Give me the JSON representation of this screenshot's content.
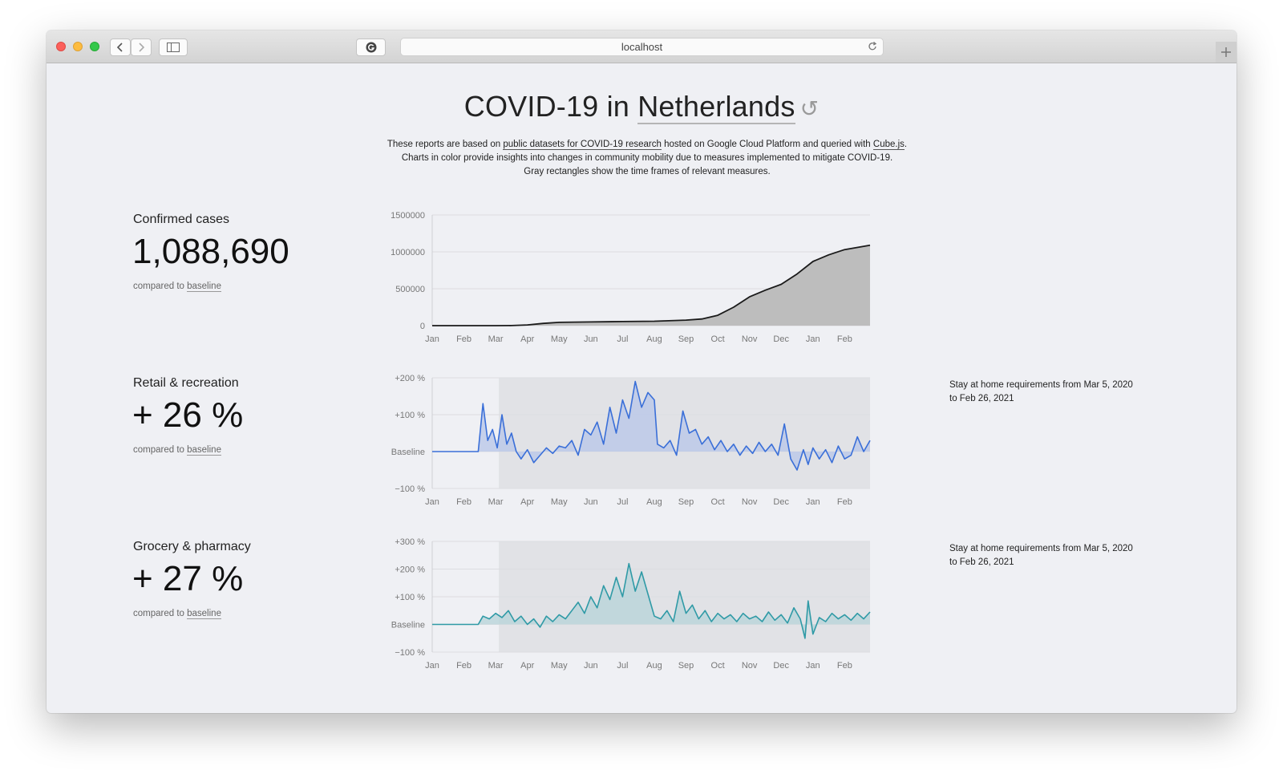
{
  "browser": {
    "url": "localhost"
  },
  "page": {
    "heading_prefix": "COVID-19 in",
    "country": "Netherlands",
    "reset_icon": "↺",
    "intro": {
      "t1": "These reports are based on ",
      "link1": "public datasets for COVID-19 research",
      "t2": " hosted on Google Cloud Platform and queried with ",
      "link2": "Cube.js",
      "t3": ".",
      "line2": "Charts in color provide insights into changes in community mobility due to measures implemented to mitigate COVID-19.",
      "line3": "Gray rectangles show the time frames of relevant measures."
    }
  },
  "stats": [
    {
      "title": "Confirmed cases",
      "value": "1,088,690",
      "note_prefix": "compared to ",
      "note_link": "baseline"
    },
    {
      "title": "Retail & recreation",
      "value": "+ 26 %",
      "note_prefix": "compared to ",
      "note_link": "baseline",
      "measure_note": "Stay at home requirements from Mar 5, 2020 to Feb 26, 2021"
    },
    {
      "title": "Grocery & pharmacy",
      "value": "+ 27 %",
      "note_prefix": "compared to ",
      "note_link": "baseline",
      "measure_note": "Stay at home requirements from Mar 5, 2020 to Feb 26, 2021"
    }
  ],
  "chart_data": [
    {
      "type": "area",
      "color": "#1a1a1a",
      "fill": "#bdbdbd",
      "months": [
        "Jan",
        "Feb",
        "Mar",
        "Apr",
        "May",
        "Jun",
        "Jul",
        "Aug",
        "Sep",
        "Oct",
        "Nov",
        "Dec",
        "Jan",
        "Feb"
      ],
      "yticks": [
        "1500000",
        "1000000",
        "500000",
        "0"
      ],
      "ylim": [
        0,
        1500000
      ],
      "x": [
        0,
        1,
        2,
        2.5,
        3,
        3.5,
        4,
        5,
        6,
        7,
        8,
        8.5,
        9,
        9.5,
        10,
        10.5,
        11,
        11.5,
        12,
        12.5,
        13,
        13.8
      ],
      "values": [
        0,
        0,
        0,
        1000,
        10000,
        30000,
        45000,
        50000,
        55000,
        60000,
        75000,
        90000,
        140000,
        250000,
        390000,
        480000,
        560000,
        700000,
        870000,
        960000,
        1030000,
        1088690
      ]
    },
    {
      "type": "line",
      "color": "#3a6fd8",
      "fill": "#b7c6e8",
      "months": [
        "Jan",
        "Feb",
        "Mar",
        "Apr",
        "May",
        "Jun",
        "Jul",
        "Aug",
        "Sep",
        "Oct",
        "Nov",
        "Dec",
        "Jan",
        "Feb"
      ],
      "yticks": [
        "+200 %",
        "+100 %",
        "Baseline",
        "−100 %"
      ],
      "ylim": [
        -100,
        200
      ],
      "measure_start": 2.1,
      "x": [
        0,
        1,
        1.45,
        1.6,
        1.75,
        1.9,
        2.05,
        2.2,
        2.35,
        2.5,
        2.65,
        2.8,
        3,
        3.2,
        3.4,
        3.6,
        3.8,
        4,
        4.2,
        4.4,
        4.6,
        4.8,
        5,
        5.2,
        5.4,
        5.6,
        5.8,
        6,
        6.2,
        6.4,
        6.6,
        6.8,
        7,
        7.1,
        7.3,
        7.5,
        7.7,
        7.9,
        8.1,
        8.3,
        8.5,
        8.7,
        8.9,
        9.1,
        9.3,
        9.5,
        9.7,
        9.9,
        10.1,
        10.3,
        10.5,
        10.7,
        10.9,
        11.1,
        11.3,
        11.5,
        11.7,
        11.85,
        12,
        12.2,
        12.4,
        12.6,
        12.8,
        13,
        13.2,
        13.4,
        13.6,
        13.8
      ],
      "values": [
        0,
        0,
        0,
        130,
        30,
        60,
        10,
        100,
        20,
        50,
        0,
        -20,
        5,
        -30,
        -10,
        10,
        -5,
        15,
        10,
        30,
        -10,
        60,
        45,
        80,
        20,
        120,
        50,
        140,
        90,
        190,
        120,
        160,
        140,
        20,
        10,
        30,
        -10,
        110,
        50,
        60,
        20,
        40,
        5,
        30,
        0,
        20,
        -10,
        15,
        -5,
        25,
        0,
        20,
        -10,
        75,
        -20,
        -50,
        5,
        -35,
        10,
        -20,
        5,
        -30,
        15,
        -20,
        -10,
        40,
        0,
        30
      ]
    },
    {
      "type": "line",
      "color": "#2f9aa6",
      "fill": "#b6d3d8",
      "months": [
        "Jan",
        "Feb",
        "Mar",
        "Apr",
        "May",
        "Jun",
        "Jul",
        "Aug",
        "Sep",
        "Oct",
        "Nov",
        "Dec",
        "Jan",
        "Feb"
      ],
      "yticks": [
        "+300 %",
        "+200 %",
        "+100 %",
        "Baseline",
        "−100 %"
      ],
      "ylim": [
        -100,
        300
      ],
      "measure_start": 2.1,
      "x": [
        0,
        1,
        1.45,
        1.6,
        1.8,
        2,
        2.2,
        2.4,
        2.6,
        2.8,
        3,
        3.2,
        3.4,
        3.6,
        3.8,
        4,
        4.2,
        4.4,
        4.6,
        4.8,
        5,
        5.2,
        5.4,
        5.6,
        5.8,
        6,
        6.2,
        6.4,
        6.6,
        6.8,
        7,
        7.2,
        7.4,
        7.6,
        7.8,
        8,
        8.2,
        8.4,
        8.6,
        8.8,
        9,
        9.2,
        9.4,
        9.6,
        9.8,
        10,
        10.2,
        10.4,
        10.6,
        10.8,
        11,
        11.2,
        11.4,
        11.6,
        11.75,
        11.85,
        12,
        12.2,
        12.4,
        12.6,
        12.8,
        13,
        13.2,
        13.4,
        13.6,
        13.8
      ],
      "values": [
        0,
        0,
        0,
        30,
        20,
        40,
        25,
        50,
        10,
        30,
        0,
        20,
        -10,
        30,
        10,
        35,
        20,
        50,
        80,
        40,
        100,
        60,
        140,
        90,
        170,
        100,
        220,
        120,
        190,
        110,
        30,
        20,
        50,
        10,
        120,
        40,
        70,
        20,
        50,
        10,
        40,
        20,
        35,
        10,
        40,
        20,
        30,
        10,
        45,
        15,
        35,
        5,
        60,
        20,
        -50,
        85,
        -35,
        25,
        10,
        40,
        20,
        35,
        15,
        40,
        20,
        45
      ]
    }
  ]
}
